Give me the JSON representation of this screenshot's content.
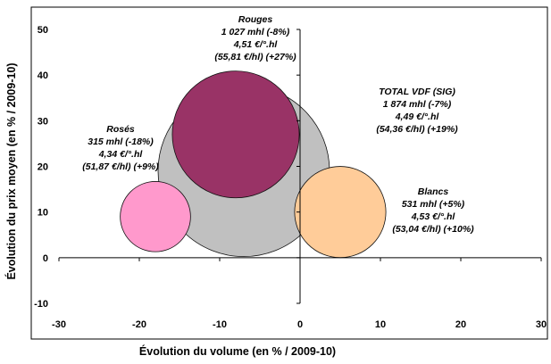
{
  "chart_data": {
    "type": "bubble",
    "title": "",
    "xlabel": "Évolution du volume (en % / 2009-10)",
    "ylabel": "Évolution du prix moyen (en % / 2009-10)",
    "xlim": [
      -30,
      30
    ],
    "ylim": [
      -10,
      50
    ],
    "xticks": [
      -30,
      -20,
      -10,
      0,
      10,
      20,
      30
    ],
    "yticks": [
      -10,
      0,
      10,
      20,
      30,
      40,
      50
    ],
    "grid": false,
    "legend": "none",
    "series": [
      {
        "name": "TOTAL VDF (SIG)",
        "x": -7,
        "y": 19,
        "size_mhl": 1874,
        "color": "#C0C0C0",
        "label_lines": [
          "TOTAL VDF (SIG)",
          "1 874 mhl (-7%)",
          "4,49 €/°.hl",
          "(54,36 €/hl) (+19%)"
        ]
      },
      {
        "name": "Rouges",
        "x": -8,
        "y": 27,
        "size_mhl": 1027,
        "color": "#993366",
        "label_lines": [
          "Rouges",
          "1 027 mhl (-8%)",
          "4,51 €/°.hl",
          "(55,81 €/hl) (+27%)"
        ]
      },
      {
        "name": "Blancs",
        "x": 5,
        "y": 10,
        "size_mhl": 531,
        "color": "#FFCC99",
        "label_lines": [
          "Blancs",
          "531 mhl (+5%)",
          "4,53 €/°.hl",
          "(53,04 €/hl) (+10%)"
        ]
      },
      {
        "name": "Rosés",
        "x": -18,
        "y": 9,
        "size_mhl": 315,
        "color": "#FF99CC",
        "label_lines": [
          "Rosés",
          "315 mhl (-18%)",
          "4,34 €/°.hl",
          "(51,87 €/hl) (+9%)"
        ]
      }
    ]
  }
}
